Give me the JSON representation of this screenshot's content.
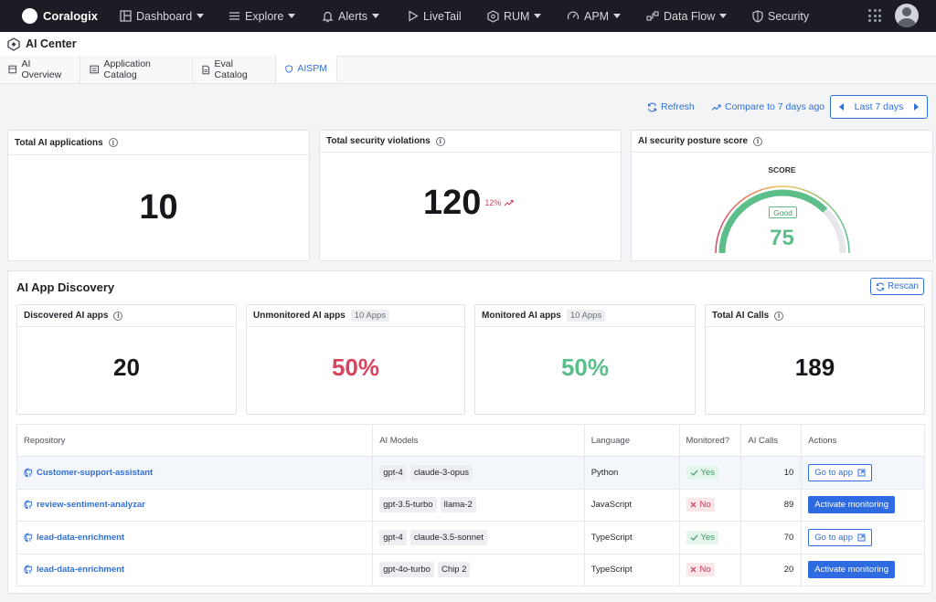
{
  "topnav": {
    "brand": "Coralogix",
    "items": [
      {
        "label": "Dashboard",
        "icon": "dashboard-icon",
        "dropdown": true
      },
      {
        "label": "Explore",
        "icon": "explore-icon",
        "dropdown": true
      },
      {
        "label": "Alerts",
        "icon": "bell-icon",
        "dropdown": true
      },
      {
        "label": "LiveTail",
        "icon": "play-icon",
        "dropdown": false
      },
      {
        "label": "RUM",
        "icon": "rum-icon",
        "dropdown": true
      },
      {
        "label": "APM",
        "icon": "gauge-icon",
        "dropdown": true
      },
      {
        "label": "Data Flow",
        "icon": "data-flow-icon",
        "dropdown": true
      },
      {
        "label": "Security",
        "icon": "shield-icon",
        "dropdown": false
      }
    ]
  },
  "header": {
    "title": "AI Center"
  },
  "tabs": [
    {
      "label": "AI Overview",
      "active": false
    },
    {
      "label": "Application Catalog",
      "active": false
    },
    {
      "label": "Eval Catalog",
      "active": false
    },
    {
      "label": "AISPM",
      "active": true
    }
  ],
  "toolbar": {
    "refresh": "Refresh",
    "compare": "Compare to 7 days ago",
    "range": "Last 7 days"
  },
  "summary": {
    "total_apps": {
      "label": "Total AI applications",
      "value": "10"
    },
    "violations": {
      "label": "Total security violations",
      "value": "120",
      "trend": "12%"
    },
    "posture": {
      "label": "AI security posture score",
      "score_label": "SCORE",
      "status": "Good",
      "value": "75",
      "max": 100
    }
  },
  "discovery": {
    "title": "AI App Discovery",
    "rescan": "Rescan",
    "discovered": {
      "label": "Discovered AI apps",
      "value": "20"
    },
    "unmonitored": {
      "label": "Unmonitored AI apps",
      "count": "10 Apps",
      "value": "50%"
    },
    "monitored": {
      "label": "Monitored AI apps",
      "count": "10 Apps",
      "value": "50%"
    },
    "calls": {
      "label": "Total AI Calls",
      "value": "189"
    }
  },
  "table": {
    "headers": [
      "Repository",
      "AI Models",
      "Language",
      "Monitored?",
      "AI Calls",
      "Actions"
    ],
    "rows": [
      {
        "repo": "Customer-support-assistant",
        "models": [
          "gpt-4",
          "claude-3-opus"
        ],
        "language": "Python",
        "monitored": "Yes",
        "calls": "10",
        "action": "Go to app"
      },
      {
        "repo": "review-sentiment-analyzar",
        "models": [
          "gpt-3.5-turbo",
          "llama-2"
        ],
        "language": "JavaScript",
        "monitored": "No",
        "calls": "89",
        "action": "Activate monitoring"
      },
      {
        "repo": "lead-data-enrichment",
        "models": [
          "gpt-4",
          "claude-3.5-sonnet"
        ],
        "language": "TypeScript",
        "monitored": "Yes",
        "calls": "70",
        "action": "Go to app"
      },
      {
        "repo": "lead-data-enrichment",
        "models": [
          "gpt-4o-turbo",
          "Chip 2"
        ],
        "language": "TypeScript",
        "monitored": "No",
        "calls": "20",
        "action": "Activate monitoring"
      }
    ]
  },
  "colors": {
    "accent": "#2f6fdc",
    "danger": "#d9435e",
    "success": "#5cbf8a",
    "nav_bg": "#1c1d24"
  }
}
